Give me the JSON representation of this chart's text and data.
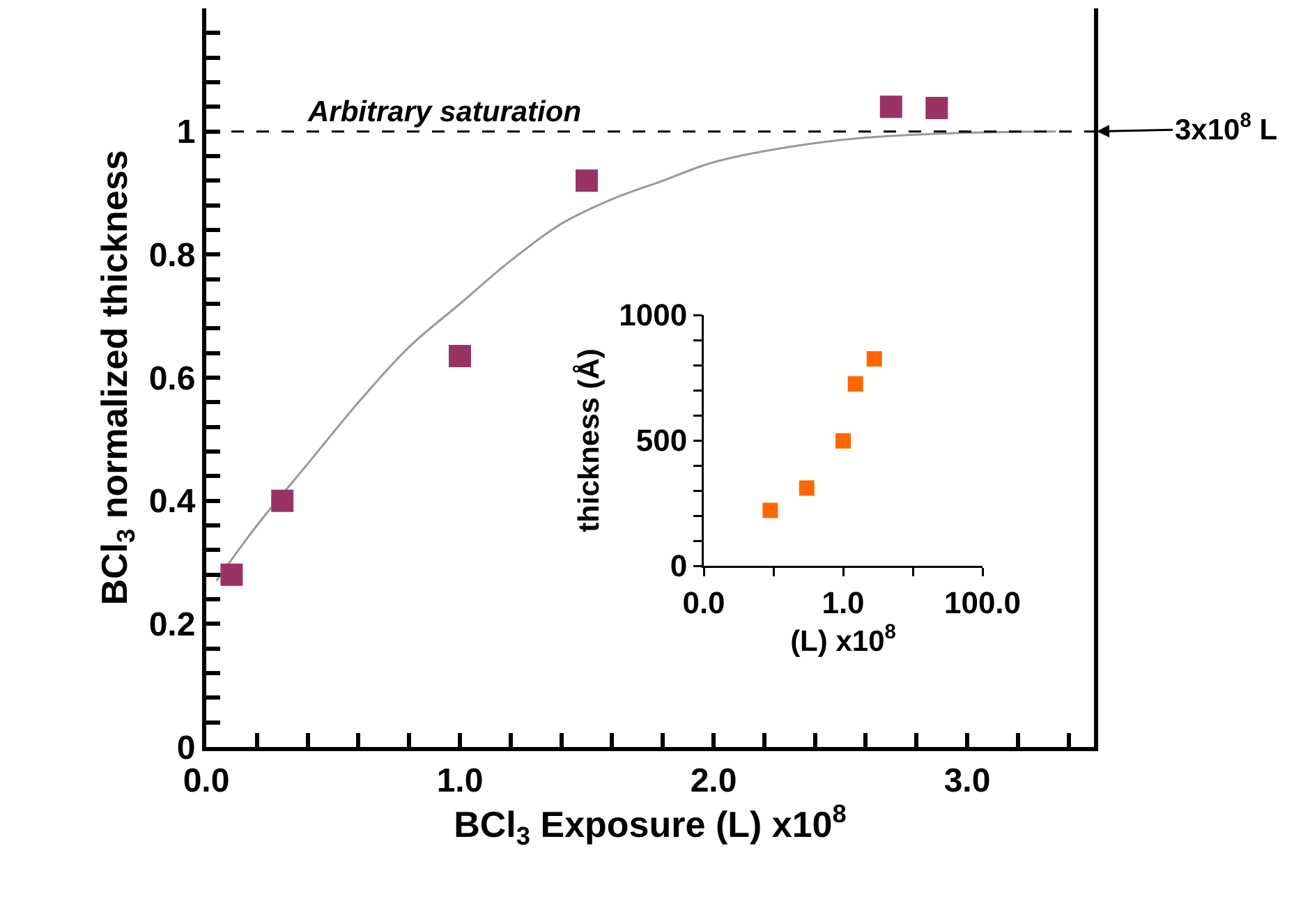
{
  "chart_data": [
    {
      "type": "scatter",
      "xlabel": "BCl$_{3}$ Exposure (L) x10$^{8}$",
      "ylabel": "BCl$_{3}$ normalized thickness",
      "xlim": [
        0,
        3.5
      ],
      "ylim": [
        0,
        1.2
      ],
      "xticks": [
        {
          "value": 0,
          "label": "0.0"
        },
        {
          "value": 0.2,
          "label": null
        },
        {
          "value": 0.4,
          "label": null
        },
        {
          "value": 0.6,
          "label": null
        },
        {
          "value": 0.8,
          "label": null
        },
        {
          "value": 1,
          "label": "1.0"
        },
        {
          "value": 1.2,
          "label": null
        },
        {
          "value": 1.4,
          "label": null
        },
        {
          "value": 1.6,
          "label": null
        },
        {
          "value": 1.8,
          "label": null
        },
        {
          "value": 2,
          "label": "2.0"
        },
        {
          "value": 2.2,
          "label": null
        },
        {
          "value": 2.4,
          "label": null
        },
        {
          "value": 2.6,
          "label": null
        },
        {
          "value": 2.8,
          "label": null
        },
        {
          "value": 3,
          "label": "3.0"
        },
        {
          "value": 3.2,
          "label": null
        },
        {
          "value": 3.4,
          "label": null
        }
      ],
      "yticks": [
        0,
        {
          "value": 0.04,
          "label": null
        },
        {
          "value": 0.08,
          "label": null
        },
        {
          "value": 0.12,
          "label": null
        },
        {
          "value": 0.16,
          "label": null
        },
        0.2,
        {
          "value": 0.24,
          "label": null
        },
        {
          "value": 0.28,
          "label": null
        },
        {
          "value": 0.32,
          "label": null
        },
        {
          "value": 0.36,
          "label": null
        },
        0.4,
        {
          "value": 0.44,
          "label": null
        },
        {
          "value": 0.48,
          "label": null
        },
        {
          "value": 0.52,
          "label": null
        },
        {
          "value": 0.56,
          "label": null
        },
        0.6,
        {
          "value": 0.64,
          "label": null
        },
        {
          "value": 0.68,
          "label": null
        },
        {
          "value": 0.72,
          "label": null
        },
        {
          "value": 0.76,
          "label": null
        },
        0.8,
        {
          "value": 0.84,
          "label": null
        },
        {
          "value": 0.88,
          "label": null
        },
        {
          "value": 0.92,
          "label": null
        },
        {
          "value": 0.96,
          "label": null
        },
        1,
        {
          "value": 1.04,
          "label": null
        },
        {
          "value": 1.08,
          "label": null
        },
        {
          "value": 1.12,
          "label": null
        },
        {
          "value": 1.16,
          "label": null
        }
      ],
      "series": [
        {
          "type": "line",
          "color": "#999999",
          "marker": "none",
          "x": [
            0.04,
            0.2,
            0.4,
            0.6,
            0.8,
            1.0,
            1.2,
            1.4,
            1.6,
            1.8,
            2.0,
            2.3,
            2.6,
            3.0,
            3.35
          ],
          "values": [
            0.27,
            0.36,
            0.46,
            0.56,
            0.65,
            0.72,
            0.79,
            0.85,
            0.89,
            0.92,
            0.95,
            0.975,
            0.99,
            0.998,
            1.0
          ]
        },
        {
          "color": "#993366",
          "marker": "square",
          "x": [
            0.1,
            0.3,
            1.0,
            1.5,
            2.7,
            2.88
          ],
          "values": [
            0.28,
            0.4,
            0.635,
            0.92,
            1.04,
            1.038
          ]
        }
      ],
      "ref_lines": [
        {
          "axis": "y",
          "value": 1,
          "label": "Arbitrary saturation",
          "color": "#000000",
          "line_style": "dashed"
        }
      ],
      "annotations": [
        {
          "text": "3x10$^{8}$ L",
          "x": 3.5,
          "y": 1
        }
      ]
    },
    {
      "type": "scatter",
      "xlabel": "(L) x10$^{8}$",
      "ylabel": "thickness (Å)",
      "log": "x",
      "xlim": [
        0.01,
        100
      ],
      "ylim": [
        0,
        1000
      ],
      "xticks": [
        {
          "value": 0.01,
          "label": "0.0"
        },
        {
          "value": 0.1,
          "label": null
        },
        {
          "value": 1,
          "label": "1.0"
        },
        {
          "value": 10,
          "label": null
        },
        {
          "value": 100,
          "label": "100.0"
        }
      ],
      "yticks": [
        0,
        {
          "value": 100,
          "label": null
        },
        {
          "value": 200,
          "label": null
        },
        {
          "value": 300,
          "label": null
        },
        {
          "value": 400,
          "label": null
        },
        500,
        {
          "value": 600,
          "label": null
        },
        {
          "value": 700,
          "label": null
        },
        {
          "value": 800,
          "label": null
        },
        {
          "value": 900,
          "label": null
        },
        1000
      ],
      "series": [
        {
          "color": "#ff6600",
          "marker": "square",
          "x": [
            0.09,
            0.3,
            1.0,
            1.5,
            2.8
          ],
          "values": [
            221,
            310,
            498,
            725,
            825
          ]
        }
      ]
    }
  ]
}
